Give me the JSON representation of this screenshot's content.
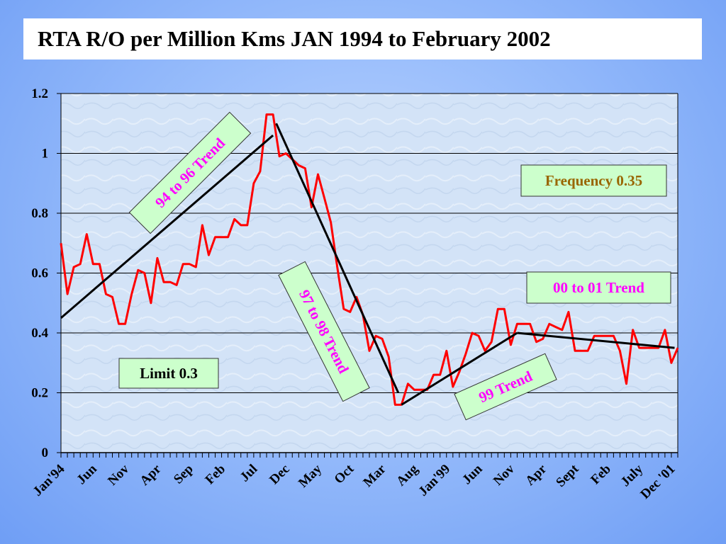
{
  "title": "RTA R/O per Million Kms JAN 1994 to February 2002",
  "chart_data": {
    "type": "line",
    "ylim": [
      0,
      1.2
    ],
    "yticks": [
      "0",
      "0.2",
      "0.4",
      "0.6",
      "0.8",
      "1",
      "1.2"
    ],
    "grid": true,
    "x_tick_labels": [
      {
        "label": "Jan'94",
        "month_index": 0
      },
      {
        "label": "Jun",
        "month_index": 5
      },
      {
        "label": "Nov",
        "month_index": 10
      },
      {
        "label": "Apr",
        "month_index": 15
      },
      {
        "label": "Sep",
        "month_index": 20
      },
      {
        "label": "Feb",
        "month_index": 25
      },
      {
        "label": "Jul",
        "month_index": 30
      },
      {
        "label": "Dec",
        "month_index": 35
      },
      {
        "label": "May",
        "month_index": 40
      },
      {
        "label": "Oct",
        "month_index": 45
      },
      {
        "label": "Mar",
        "month_index": 50
      },
      {
        "label": "Aug",
        "month_index": 55
      },
      {
        "label": "Jan'99",
        "month_index": 60
      },
      {
        "label": "Jun",
        "month_index": 65
      },
      {
        "label": "Nov",
        "month_index": 70
      },
      {
        "label": "Apr",
        "month_index": 75
      },
      {
        "label": "Sept",
        "month_index": 80
      },
      {
        "label": "Feb",
        "month_index": 85
      },
      {
        "label": "July",
        "month_index": 90
      },
      {
        "label": "Dec '01",
        "month_index": 95
      }
    ],
    "series": [
      {
        "color": "#ff0000",
        "values": [
          0.7,
          0.53,
          0.62,
          0.63,
          0.73,
          0.63,
          0.63,
          0.53,
          0.52,
          0.43,
          0.43,
          0.53,
          0.61,
          0.6,
          0.5,
          0.65,
          0.57,
          0.57,
          0.56,
          0.63,
          0.63,
          0.62,
          0.76,
          0.66,
          0.72,
          0.72,
          0.72,
          0.78,
          0.76,
          0.76,
          0.9,
          0.94,
          1.13,
          1.13,
          0.99,
          1.0,
          0.98,
          0.96,
          0.95,
          0.82,
          0.93,
          0.85,
          0.77,
          0.62,
          0.48,
          0.47,
          0.52,
          0.46,
          0.34,
          0.39,
          0.38,
          0.32,
          0.16,
          0.16,
          0.23,
          0.21,
          0.21,
          0.21,
          0.26,
          0.26,
          0.34,
          0.22,
          0.27,
          0.33,
          0.4,
          0.39,
          0.34,
          0.37,
          0.48,
          0.48,
          0.36,
          0.43,
          0.43,
          0.43,
          0.37,
          0.38,
          0.43,
          0.42,
          0.41,
          0.47,
          0.34,
          0.34,
          0.34,
          0.39,
          0.39,
          0.39,
          0.39,
          0.34,
          0.23,
          0.41,
          0.35,
          0.35,
          0.35,
          0.35,
          0.41,
          0.3,
          0.35
        ]
      }
    ],
    "trend_lines": [
      {
        "name": "94 to 96 Trend",
        "color": "#000000",
        "from": [
          0,
          0.45
        ],
        "to": [
          33,
          1.06
        ]
      },
      {
        "name": "97 to 98 Trend",
        "color": "#000000",
        "from": [
          33.5,
          1.1
        ],
        "to": [
          52.5,
          0.2
        ]
      },
      {
        "name": "99 Trend",
        "color": "#000000",
        "from": [
          53,
          0.16
        ],
        "to": [
          71,
          0.4
        ]
      },
      {
        "name": "00 to 01 Trend",
        "color": "#000000",
        "from": [
          71,
          0.4
        ],
        "to": [
          95.5,
          0.35
        ]
      }
    ],
    "annotations": {
      "trend_94_96": "94 to 96 Trend",
      "trend_97_98": "97 to 98 Trend",
      "trend_99": "99 Trend",
      "trend_00_01": "00 to 01 Trend",
      "frequency": "Frequency 0.35",
      "limit": "Limit 0.3"
    }
  }
}
